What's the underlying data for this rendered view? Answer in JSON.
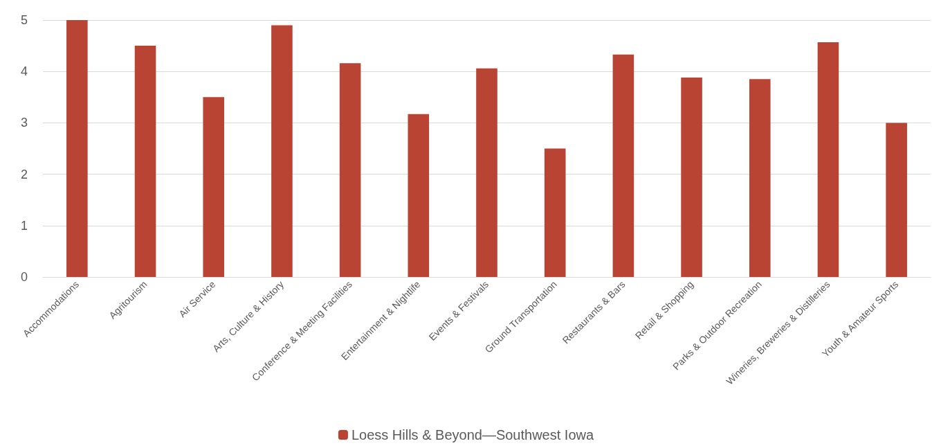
{
  "chart_data": {
    "type": "bar",
    "categories": [
      "Accommodations",
      "Agritourism",
      "Air Service",
      "Arts, Culture & History",
      "Conference & Meeting Facilities",
      "Entertainment & Nightlife",
      "Events & Festivals",
      "Ground Transportation",
      "Restaurants & Bars",
      "Retail & Shopping",
      "Parks & Outdoor Recreation",
      "Wineries, Breweries & Distilleries",
      "Youth & Amateur Sports"
    ],
    "series": [
      {
        "name": "Loess Hills & Beyond—Southwest Iowa",
        "color": "#b94434",
        "values": [
          5.0,
          4.5,
          3.5,
          4.9,
          4.16,
          3.17,
          4.06,
          2.5,
          4.33,
          3.88,
          3.85,
          4.57,
          3.0
        ]
      }
    ],
    "ylim": [
      0,
      5
    ],
    "yticks": [
      0,
      1,
      2,
      3,
      4,
      5
    ],
    "grid": "y",
    "legend": "bottom"
  }
}
